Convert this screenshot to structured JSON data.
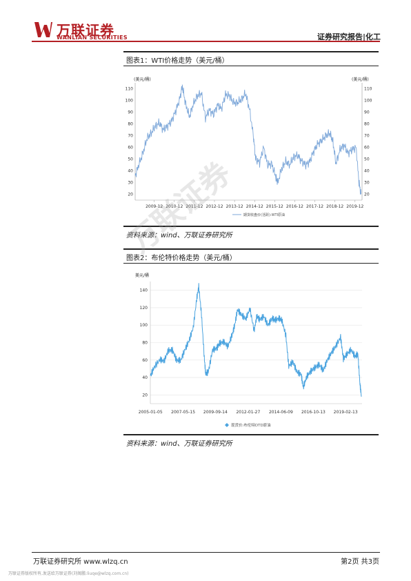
{
  "header": {
    "company_cn": "万联证券",
    "company_en": "WANLIAN SECURITIES",
    "category": "证券研究报告|化工"
  },
  "figure1": {
    "title": "图表1：WTI价格走势（美元/桶）",
    "source": "资料来源：wind、万联证券研究所"
  },
  "figure2": {
    "title": "图表2：布伦特价格走势（美元/桶）",
    "source": "资料来源：wind、万联证券研究所"
  },
  "chart_data": [
    {
      "type": "line",
      "ylabel": "(美元/桶)",
      "ylabel_right": "(美元/桶)",
      "ylim": [
        15,
        115
      ],
      "yticks": [
        20,
        30,
        40,
        50,
        60,
        70,
        80,
        90,
        100,
        110
      ],
      "xticks": [
        "2009-12",
        "2010-12",
        "2011-12",
        "2012-12",
        "2013-12",
        "2014-12",
        "2015-12",
        "2016-12",
        "2017-12",
        "2018-12",
        "2019-12"
      ],
      "xlim": [
        2009.0,
        2020.3
      ],
      "legend": "期货收盘价(活跃):WTI原油",
      "legend_position": "bottom",
      "grid": false,
      "color": "#7da7d9",
      "series": [
        {
          "x": [
            2009.0,
            2009.2,
            2009.4,
            2009.6,
            2009.8,
            2010.0,
            2010.2,
            2010.4,
            2010.6,
            2010.8,
            2011.0,
            2011.2,
            2011.35,
            2011.5,
            2011.7,
            2011.9,
            2012.1,
            2012.3,
            2012.5,
            2012.7,
            2012.9,
            2013.1,
            2013.3,
            2013.5,
            2013.7,
            2013.9,
            2014.1,
            2014.3,
            2014.5,
            2014.7,
            2014.9,
            2015.0,
            2015.2,
            2015.4,
            2015.6,
            2015.8,
            2016.0,
            2016.1,
            2016.3,
            2016.5,
            2016.7,
            2016.9,
            2017.1,
            2017.3,
            2017.5,
            2017.7,
            2017.9,
            2018.1,
            2018.3,
            2018.5,
            2018.7,
            2018.85,
            2019.0,
            2019.2,
            2019.4,
            2019.6,
            2019.8,
            2020.0,
            2020.15,
            2020.25
          ],
          "values": [
            36,
            46,
            56,
            68,
            72,
            78,
            81,
            75,
            78,
            82,
            90,
            100,
            112,
            98,
            86,
            97,
            104,
            106,
            85,
            92,
            88,
            96,
            93,
            105,
            104,
            98,
            98,
            101,
            106,
            92,
            68,
            50,
            47,
            60,
            45,
            46,
            35,
            30,
            42,
            48,
            45,
            52,
            53,
            48,
            45,
            48,
            57,
            63,
            66,
            70,
            72,
            65,
            46,
            58,
            62,
            55,
            58,
            60,
            30,
            20
          ]
        }
      ]
    },
    {
      "type": "line",
      "ylabel": "美元/桶",
      "ylim": [
        10,
        150
      ],
      "yticks": [
        20,
        40,
        60,
        80,
        100,
        120,
        140
      ],
      "xticks": [
        "2005-01-05",
        "2007-05-15",
        "2009-09-14",
        "2012-01-27",
        "2014-06-09",
        "2016-10-13",
        "2019-02-13"
      ],
      "xlim": [
        2005.0,
        2020.3
      ],
      "legend": "现货价:布伦特DTD原油",
      "legend_position": "bottom",
      "grid": true,
      "color": "#4aa3df",
      "series": [
        {
          "x": [
            2005.0,
            2005.3,
            2005.7,
            2006.0,
            2006.3,
            2006.6,
            2006.9,
            2007.2,
            2007.5,
            2007.8,
            2008.1,
            2008.35,
            2008.5,
            2008.7,
            2008.9,
            2009.0,
            2009.2,
            2009.5,
            2009.8,
            2010.0,
            2010.3,
            2010.6,
            2010.9,
            2011.1,
            2011.3,
            2011.6,
            2011.9,
            2012.2,
            2012.5,
            2012.7,
            2012.9,
            2013.2,
            2013.5,
            2013.8,
            2014.0,
            2014.3,
            2014.5,
            2014.8,
            2015.0,
            2015.3,
            2015.6,
            2015.9,
            2016.05,
            2016.3,
            2016.6,
            2016.9,
            2017.2,
            2017.5,
            2017.8,
            2018.1,
            2018.4,
            2018.75,
            2018.95,
            2019.2,
            2019.5,
            2019.8,
            2020.0,
            2020.15,
            2020.25
          ],
          "values": [
            42,
            52,
            60,
            58,
            70,
            70,
            58,
            58,
            70,
            80,
            95,
            128,
            142,
            110,
            60,
            42,
            45,
            70,
            72,
            78,
            80,
            75,
            88,
            100,
            118,
            112,
            108,
            120,
            95,
            112,
            108,
            112,
            102,
            110,
            108,
            110,
            108,
            90,
            55,
            60,
            48,
            45,
            30,
            42,
            48,
            52,
            55,
            48,
            60,
            68,
            75,
            85,
            60,
            65,
            70,
            62,
            65,
            30,
            18
          ]
        }
      ]
    }
  ],
  "watermark": "万联证券",
  "footer": {
    "left": "万联证券研究所  www.wlzq.cn",
    "right": "第2页 共3页",
    "notice": "万联证券版权所有,发送给万联证券(刘阁鹏:liuqe@wlzq.com.cn)"
  }
}
